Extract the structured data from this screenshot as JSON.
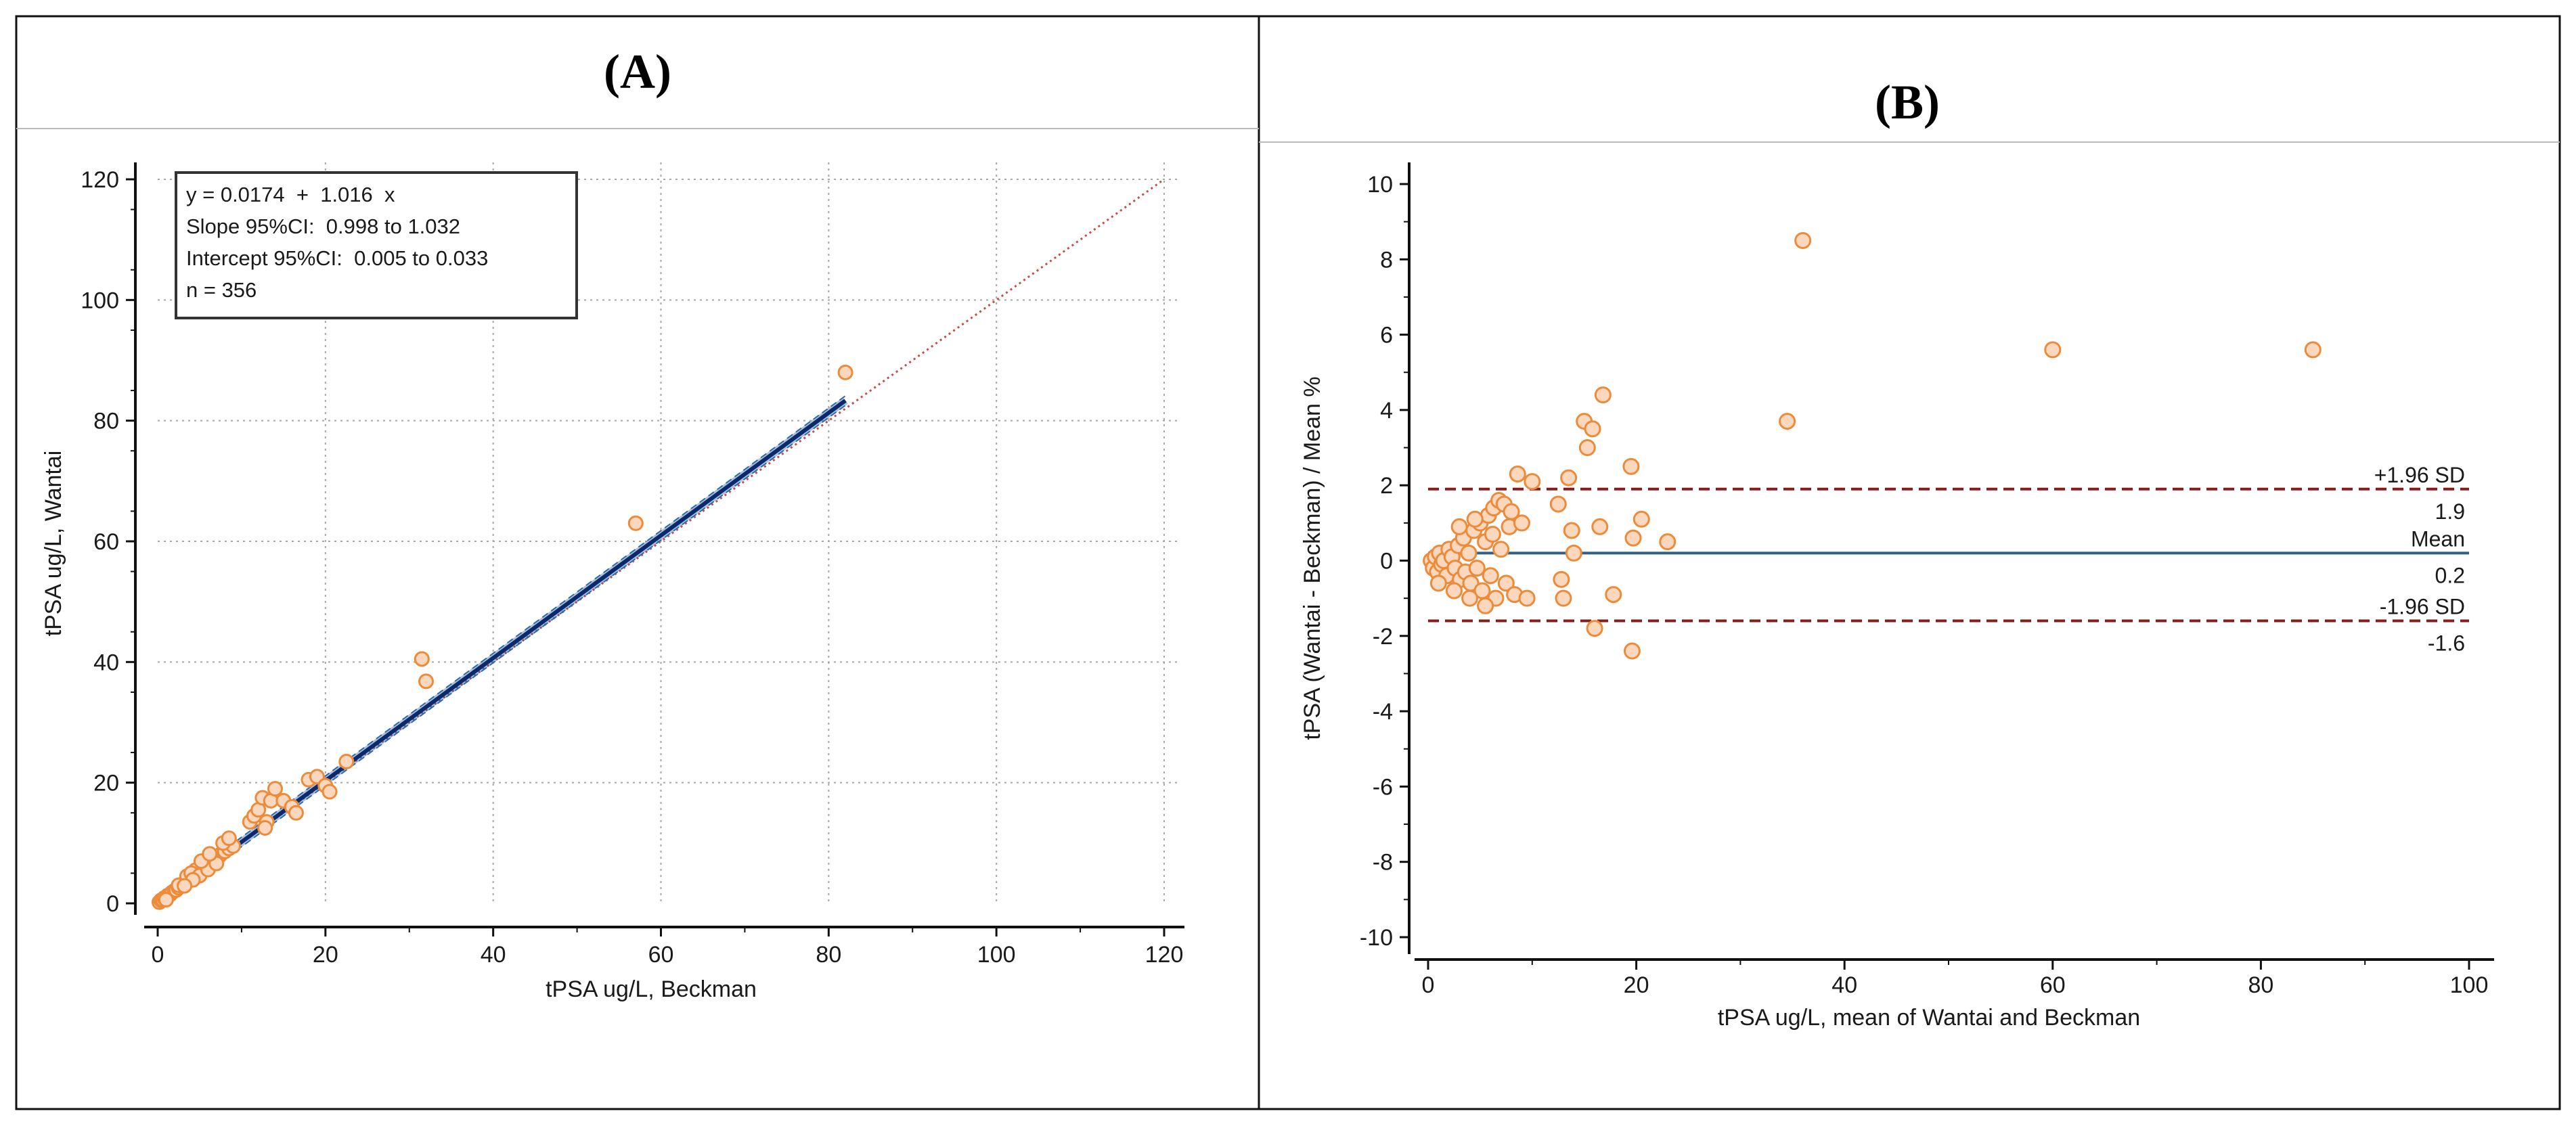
{
  "chart_data": [
    {
      "panel_label": "(A)",
      "type": "scatter",
      "title": "",
      "xlabel": "tPSA ug/L, Beckman",
      "ylabel": "tPSA ug/L, Wantai",
      "xlim": [
        0,
        120
      ],
      "ylim": [
        0,
        120
      ],
      "xticks": [
        "0",
        "20",
        "40",
        "60",
        "80",
        "100",
        "120"
      ],
      "yticks": [
        "0",
        "20",
        "40",
        "60",
        "80",
        "100",
        "120"
      ],
      "grid": true,
      "legend": {
        "position": "top-left",
        "lines": [
          "y = 0.0174  +  1.016  x",
          "Slope 95%CI:  0.998 to 1.032",
          "Intercept 95%CI:  0.005 to 0.033",
          "n = 356"
        ]
      },
      "regression": {
        "intercept": 0.0174,
        "slope": 1.016,
        "x_range": [
          0,
          82
        ]
      },
      "identity_line": {
        "x_range": [
          0,
          120
        ]
      },
      "points": [
        [
          0.2,
          0.2
        ],
        [
          0.4,
          0.5
        ],
        [
          0.6,
          0.6
        ],
        [
          0.8,
          0.9
        ],
        [
          1.0,
          1.0
        ],
        [
          1.2,
          1.3
        ],
        [
          1.5,
          1.5
        ],
        [
          1.7,
          1.8
        ],
        [
          2.0,
          2.1
        ],
        [
          2.2,
          2.2
        ],
        [
          2.5,
          2.6
        ],
        [
          2.8,
          2.9
        ],
        [
          3.0,
          3.2
        ],
        [
          3.3,
          3.3
        ],
        [
          3.5,
          3.7
        ],
        [
          3.8,
          4.0
        ],
        [
          4.0,
          4.2
        ],
        [
          4.3,
          4.6
        ],
        [
          4.5,
          4.8
        ],
        [
          4.8,
          5.0
        ],
        [
          5.0,
          5.4
        ],
        [
          5.3,
          5.7
        ],
        [
          5.5,
          5.9
        ],
        [
          5.8,
          6.2
        ],
        [
          6.0,
          6.5
        ],
        [
          6.3,
          6.7
        ],
        [
          6.5,
          7.0
        ],
        [
          6.8,
          7.3
        ],
        [
          7.0,
          7.6
        ],
        [
          7.3,
          7.8
        ],
        [
          7.5,
          8.1
        ],
        [
          8.0,
          8.6
        ],
        [
          8.5,
          9.1
        ],
        [
          9.0,
          9.5
        ],
        [
          3.5,
          4.5
        ],
        [
          4.5,
          5.5
        ],
        [
          5.5,
          6.5
        ],
        [
          6.5,
          7.5
        ],
        [
          2.5,
          3.0
        ],
        [
          4.0,
          5.0
        ],
        [
          5.0,
          4.6
        ],
        [
          6.0,
          5.6
        ],
        [
          7.0,
          6.6
        ],
        [
          7.8,
          10.0
        ],
        [
          8.5,
          10.8
        ],
        [
          5.2,
          7.0
        ],
        [
          6.2,
          8.2
        ],
        [
          4.2,
          3.9
        ],
        [
          3.2,
          2.9
        ],
        [
          1.0,
          0.6
        ],
        [
          11.0,
          13.5
        ],
        [
          11.5,
          14.5
        ],
        [
          12.0,
          15.5
        ],
        [
          12.5,
          17.5
        ],
        [
          13.0,
          13.5
        ],
        [
          13.5,
          17.0
        ],
        [
          12.8,
          12.5
        ],
        [
          14.0,
          19.0
        ],
        [
          15.0,
          17.0
        ],
        [
          16.0,
          16.0
        ],
        [
          16.5,
          15.0
        ],
        [
          18.0,
          20.5
        ],
        [
          19.0,
          21.0
        ],
        [
          20.0,
          19.5
        ],
        [
          20.5,
          18.5
        ],
        [
          22.5,
          23.5
        ],
        [
          31.5,
          40.5
        ],
        [
          32.0,
          36.8
        ],
        [
          57.0,
          63.0
        ],
        [
          82.0,
          88.0
        ]
      ]
    },
    {
      "panel_label": "(B)",
      "type": "scatter",
      "title": "",
      "xlabel": "tPSA ug/L, mean of Wantai and Beckman",
      "ylabel": "tPSA (Wantai - Beckman) / Mean %",
      "xlim": [
        0,
        100
      ],
      "ylim": [
        -10,
        10
      ],
      "xticks": [
        "0",
        "20",
        "40",
        "60",
        "80",
        "100"
      ],
      "yticks": [
        "-10",
        "-8",
        "-6",
        "-4",
        "-2",
        "0",
        "2",
        "4",
        "6",
        "8",
        "10"
      ],
      "grid": false,
      "reference_lines": [
        {
          "name": "upper",
          "value": 1.9,
          "label_top": "+1.96 SD",
          "label_value": "1.9",
          "style": "dashed",
          "color": "#8b1a1a"
        },
        {
          "name": "mean",
          "value": 0.2,
          "label_top": "Mean",
          "label_value": "0.2",
          "style": "solid",
          "color": "#2f5f8a"
        },
        {
          "name": "lower",
          "value": -1.6,
          "label_top": "-1.96 SD",
          "label_value": "-1.6",
          "style": "dashed",
          "color": "#8b1a1a"
        }
      ],
      "points": [
        [
          0.3,
          0.0
        ],
        [
          0.5,
          -0.2
        ],
        [
          0.7,
          0.1
        ],
        [
          0.9,
          -0.3
        ],
        [
          1.1,
          0.2
        ],
        [
          1.3,
          -0.1
        ],
        [
          1.5,
          0.0
        ],
        [
          1.8,
          -0.4
        ],
        [
          2.0,
          0.3
        ],
        [
          2.3,
          0.1
        ],
        [
          2.6,
          -0.2
        ],
        [
          2.9,
          0.4
        ],
        [
          3.1,
          -0.5
        ],
        [
          3.4,
          0.6
        ],
        [
          3.6,
          -0.3
        ],
        [
          3.9,
          0.2
        ],
        [
          4.1,
          -0.6
        ],
        [
          4.4,
          0.8
        ],
        [
          4.7,
          -0.2
        ],
        [
          5.0,
          1.0
        ],
        [
          5.2,
          -0.8
        ],
        [
          5.5,
          0.5
        ],
        [
          5.8,
          1.2
        ],
        [
          6.0,
          -0.4
        ],
        [
          6.3,
          1.4
        ],
        [
          6.5,
          -1.0
        ],
        [
          6.8,
          1.6
        ],
        [
          7.0,
          0.3
        ],
        [
          7.3,
          1.5
        ],
        [
          7.5,
          -0.6
        ],
        [
          7.8,
          0.9
        ],
        [
          8.0,
          1.3
        ],
        [
          8.3,
          -0.9
        ],
        [
          8.6,
          2.3
        ],
        [
          9.0,
          1.0
        ],
        [
          9.5,
          -1.0
        ],
        [
          10.0,
          2.1
        ],
        [
          1.0,
          -0.6
        ],
        [
          2.5,
          -0.8
        ],
        [
          4.0,
          -1.0
        ],
        [
          5.5,
          -1.2
        ],
        [
          3.0,
          0.9
        ],
        [
          4.5,
          1.1
        ],
        [
          6.2,
          0.7
        ],
        [
          12.5,
          1.5
        ],
        [
          12.8,
          -0.5
        ],
        [
          13.0,
          -1.0
        ],
        [
          13.5,
          2.2
        ],
        [
          13.8,
          0.8
        ],
        [
          14.0,
          0.2
        ],
        [
          15.0,
          3.7
        ],
        [
          15.3,
          3.0
        ],
        [
          15.8,
          3.5
        ],
        [
          16.0,
          -1.8
        ],
        [
          16.5,
          0.9
        ],
        [
          16.8,
          4.4
        ],
        [
          17.8,
          -0.9
        ],
        [
          19.5,
          2.5
        ],
        [
          19.6,
          -2.4
        ],
        [
          19.7,
          0.6
        ],
        [
          20.5,
          1.1
        ],
        [
          23.0,
          0.5
        ],
        [
          34.5,
          3.7
        ],
        [
          36.0,
          8.5
        ],
        [
          60.0,
          5.6
        ],
        [
          85.0,
          5.6
        ]
      ]
    }
  ]
}
